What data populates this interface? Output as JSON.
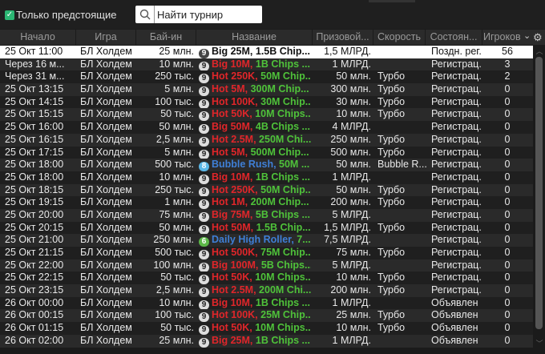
{
  "filter": {
    "upcoming_only_label": "Только предстоящие",
    "checked": true
  },
  "search": {
    "placeholder": "Найти турнир"
  },
  "columns": [
    "Начало",
    "Игра",
    "Бай-ин",
    "Название",
    "Призовой...",
    "Скорость",
    "Состоян...",
    "Игроков"
  ],
  "colors": {
    "red": "#e0262a",
    "green": "#4fc23a",
    "blue": "#3f7fd6",
    "accent": "#2bb673"
  },
  "rows": [
    {
      "start": "25 Окт  11:00",
      "game": "БЛ Холдем",
      "buyin": "25 млн.",
      "badge": "9",
      "name_a": "Big 25M, 1.5B Chip...",
      "name_b": "",
      "color_a": "plain",
      "prize": "1,5 МЛРД.",
      "speed": "",
      "state": "Поздн. рег.",
      "players": "56",
      "selected": true
    },
    {
      "start": "Через 16 м...",
      "game": "БЛ Холдем",
      "buyin": "10 млн.",
      "badge": "9",
      "name_a": "Big 10M, ",
      "name_b": "1B Chips ...",
      "color_a": "red",
      "prize": "1 МЛРД.",
      "speed": "",
      "state": "Регистрац.",
      "players": "3"
    },
    {
      "start": "Через 31 м...",
      "game": "БЛ Холдем",
      "buyin": "250 тыс.",
      "badge": "9",
      "name_a": "Hot 250K, ",
      "name_b": "50M Chip...",
      "color_a": "red",
      "prize": "50 млн.",
      "speed": "Турбо",
      "state": "Регистрац.",
      "players": "2"
    },
    {
      "start": "25 Окт  13:15",
      "game": "БЛ Холдем",
      "buyin": "5 млн.",
      "badge": "9",
      "name_a": "Hot 5M, ",
      "name_b": "300M Chip...",
      "color_a": "red",
      "prize": "300 млн.",
      "speed": "Турбо",
      "state": "Регистрац.",
      "players": "0"
    },
    {
      "start": "25 Окт  14:15",
      "game": "БЛ Холдем",
      "buyin": "100 тыс.",
      "badge": "9",
      "name_a": "Hot 100K, ",
      "name_b": "30M Chip...",
      "color_a": "red",
      "prize": "30 млн.",
      "speed": "Турбо",
      "state": "Регистрац.",
      "players": "0"
    },
    {
      "start": "25 Окт  15:15",
      "game": "БЛ Холдем",
      "buyin": "50 тыс.",
      "badge": "9",
      "name_a": "Hot 50K, ",
      "name_b": "10M Chips...",
      "color_a": "red",
      "prize": "10 млн.",
      "speed": "Турбо",
      "state": "Регистрац.",
      "players": "0"
    },
    {
      "start": "25 Окт  16:00",
      "game": "БЛ Холдем",
      "buyin": "50 млн.",
      "badge": "9",
      "name_a": "Big 50M, ",
      "name_b": "4B Chips ...",
      "color_a": "red",
      "prize": "4 МЛРД.",
      "speed": "",
      "state": "Регистрац.",
      "players": "0"
    },
    {
      "start": "25 Окт  16:15",
      "game": "БЛ Холдем",
      "buyin": "2,5 млн.",
      "badge": "9",
      "name_a": "Hot 2.5M, ",
      "name_b": "250M Chi...",
      "color_a": "red",
      "prize": "250 млн.",
      "speed": "Турбо",
      "state": "Регистрац.",
      "players": "0"
    },
    {
      "start": "25 Окт  17:15",
      "game": "БЛ Холдем",
      "buyin": "5 млн.",
      "badge": "9",
      "name_a": "Hot 5M, ",
      "name_b": "500M Chip...",
      "color_a": "red",
      "prize": "500 млн.",
      "speed": "Турбо",
      "state": "Регистрац.",
      "players": "0"
    },
    {
      "start": "25 Окт  18:00",
      "game": "БЛ Холдем",
      "buyin": "500 тыс.",
      "badge": "8",
      "name_a": "Bubble Rush, ",
      "name_b": "50M ...",
      "color_a": "blue",
      "prize": "50 млн.",
      "speed": "Bubble R...",
      "state": "Регистрац.",
      "players": "0"
    },
    {
      "start": "25 Окт  18:00",
      "game": "БЛ Холдем",
      "buyin": "10 млн.",
      "badge": "9",
      "name_a": "Big 10M, ",
      "name_b": "1B Chips ...",
      "color_a": "red",
      "prize": "1 МЛРД.",
      "speed": "",
      "state": "Регистрац.",
      "players": "0"
    },
    {
      "start": "25 Окт  18:15",
      "game": "БЛ Холдем",
      "buyin": "250 тыс.",
      "badge": "9",
      "name_a": "Hot 250K, ",
      "name_b": "50M Chip...",
      "color_a": "red",
      "prize": "50 млн.",
      "speed": "Турбо",
      "state": "Регистрац.",
      "players": "0"
    },
    {
      "start": "25 Окт  19:15",
      "game": "БЛ Холдем",
      "buyin": "1 млн.",
      "badge": "9",
      "name_a": "Hot 1M, ",
      "name_b": "200M Chip...",
      "color_a": "red",
      "prize": "200 млн.",
      "speed": "Турбо",
      "state": "Регистрац.",
      "players": "0"
    },
    {
      "start": "25 Окт  20:00",
      "game": "БЛ Холдем",
      "buyin": "75 млн.",
      "badge": "9",
      "name_a": "Big 75M, ",
      "name_b": "5B Chips ...",
      "color_a": "red",
      "prize": "5 МЛРД.",
      "speed": "",
      "state": "Регистрац.",
      "players": "0"
    },
    {
      "start": "25 Окт  20:15",
      "game": "БЛ Холдем",
      "buyin": "50 млн.",
      "badge": "9",
      "name_a": "Hot 50M, ",
      "name_b": "1.5B Chip...",
      "color_a": "red",
      "prize": "1,5 МЛРД.",
      "speed": "Турбо",
      "state": "Регистрац.",
      "players": "0"
    },
    {
      "start": "25 Окт  21:00",
      "game": "БЛ Холдем",
      "buyin": "250 млн.",
      "badge": "6",
      "name_a": "Daily High Roller, ",
      "name_b": "7....",
      "color_a": "blue",
      "prize": "7,5 МЛРД.",
      "speed": "",
      "state": "Регистрац.",
      "players": "0"
    },
    {
      "start": "25 Окт  21:15",
      "game": "БЛ Холдем",
      "buyin": "500 тыс.",
      "badge": "9",
      "name_a": "Hot 500K, ",
      "name_b": "75M Chip...",
      "color_a": "red",
      "prize": "75 млн.",
      "speed": "Турбо",
      "state": "Регистрац.",
      "players": "0"
    },
    {
      "start": "25 Окт  22:00",
      "game": "БЛ Холдем",
      "buyin": "100 млн.",
      "badge": "9",
      "name_a": "Big 100M, ",
      "name_b": "5B Chips...",
      "color_a": "red",
      "prize": "5 МЛРД.",
      "speed": "",
      "state": "Регистрац.",
      "players": "0"
    },
    {
      "start": "25 Окт  22:15",
      "game": "БЛ Холдем",
      "buyin": "50 тыс.",
      "badge": "9",
      "name_a": "Hot 50K, ",
      "name_b": "10M Chips...",
      "color_a": "red",
      "prize": "10 млн.",
      "speed": "Турбо",
      "state": "Регистрац.",
      "players": "0"
    },
    {
      "start": "25 Окт  23:15",
      "game": "БЛ Холдем",
      "buyin": "2,5 млн.",
      "badge": "9",
      "name_a": "Hot 2.5M, ",
      "name_b": "200M Chi...",
      "color_a": "red",
      "prize": "200 млн.",
      "speed": "Турбо",
      "state": "Регистрац.",
      "players": "0"
    },
    {
      "start": "26 Окт  00:00",
      "game": "БЛ Холдем",
      "buyin": "10 млн.",
      "badge": "9",
      "name_a": "Big 10M, ",
      "name_b": "1B Chips ...",
      "color_a": "red",
      "prize": "1 МЛРД.",
      "speed": "",
      "state": "Объявлен",
      "players": "0"
    },
    {
      "start": "26 Окт  00:15",
      "game": "БЛ Холдем",
      "buyin": "100 тыс.",
      "badge": "9",
      "name_a": "Hot 100K, ",
      "name_b": "25M Chip...",
      "color_a": "red",
      "prize": "25 млн.",
      "speed": "Турбо",
      "state": "Объявлен",
      "players": "0"
    },
    {
      "start": "26 Окт  01:15",
      "game": "БЛ Холдем",
      "buyin": "50 тыс.",
      "badge": "9",
      "name_a": "Hot 50K, ",
      "name_b": "10M Chips...",
      "color_a": "red",
      "prize": "10 млн.",
      "speed": "Турбо",
      "state": "Объявлен",
      "players": "0"
    },
    {
      "start": "26 Окт  02:00",
      "game": "БЛ Холдем",
      "buyin": "25 млн.",
      "badge": "9",
      "name_a": "Big 25M, ",
      "name_b": "1B Chips ...",
      "color_a": "red",
      "prize": "1 МЛРД.",
      "speed": "",
      "state": "Объявлен",
      "players": "0"
    }
  ]
}
